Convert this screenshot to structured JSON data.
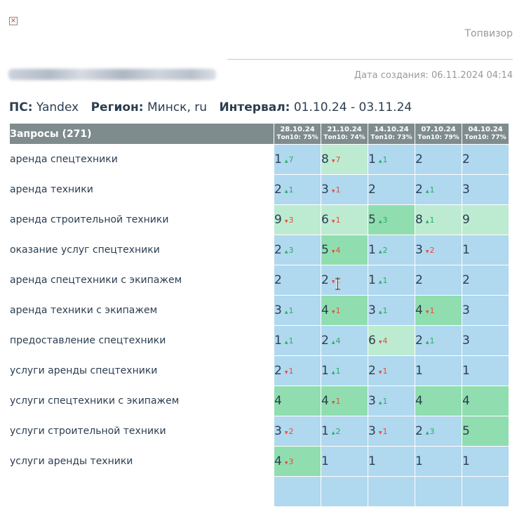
{
  "header": {
    "brand": "Топвизор",
    "created_label": "Дата создания:",
    "created_value": "06.11.2024 04:14"
  },
  "meta": {
    "ps_label": "ПС:",
    "ps_value": "Yandex",
    "region_label": "Регион:",
    "region_value": "Минск, ru",
    "interval_label": "Интервал:",
    "interval_value": "01.10.24 - 03.11.24"
  },
  "table": {
    "queries_header": "Запросы (271)",
    "columns": [
      {
        "date": "28.10.24",
        "top10": "Топ10: 75%"
      },
      {
        "date": "21.10.24",
        "top10": "Топ10: 74%"
      },
      {
        "date": "14.10.24",
        "top10": "Топ10: 73%"
      },
      {
        "date": "07.10.24",
        "top10": "Топ10: 79%"
      },
      {
        "date": "04.10.24",
        "top10": "Топ10: 77%"
      }
    ],
    "rows": [
      {
        "query": "аренда спецтехники",
        "cells": [
          {
            "pos": "1",
            "chg": "7",
            "dir": "up"
          },
          {
            "pos": "8",
            "chg": "7",
            "dir": "down"
          },
          {
            "pos": "1",
            "chg": "1",
            "dir": "up"
          },
          {
            "pos": "2",
            "chg": "",
            "dir": ""
          },
          {
            "pos": "2",
            "chg": "",
            "dir": ""
          }
        ]
      },
      {
        "query": "аренда техники",
        "cells": [
          {
            "pos": "2",
            "chg": "1",
            "dir": "up"
          },
          {
            "pos": "3",
            "chg": "1",
            "dir": "down"
          },
          {
            "pos": "2",
            "chg": "",
            "dir": ""
          },
          {
            "pos": "2",
            "chg": "1",
            "dir": "up"
          },
          {
            "pos": "3",
            "chg": "",
            "dir": ""
          }
        ]
      },
      {
        "query": "аренда строительной техники",
        "cells": [
          {
            "pos": "9",
            "chg": "3",
            "dir": "down"
          },
          {
            "pos": "6",
            "chg": "1",
            "dir": "down"
          },
          {
            "pos": "5",
            "chg": "3",
            "dir": "up"
          },
          {
            "pos": "8",
            "chg": "1",
            "dir": "up"
          },
          {
            "pos": "9",
            "chg": "",
            "dir": ""
          }
        ]
      },
      {
        "query": "оказание услуг спецтехники",
        "cells": [
          {
            "pos": "2",
            "chg": "3",
            "dir": "up"
          },
          {
            "pos": "5",
            "chg": "4",
            "dir": "down"
          },
          {
            "pos": "1",
            "chg": "2",
            "dir": "up"
          },
          {
            "pos": "3",
            "chg": "2",
            "dir": "down"
          },
          {
            "pos": "1",
            "chg": "",
            "dir": ""
          }
        ]
      },
      {
        "query": "аренда спецтехники с экипажем",
        "cells": [
          {
            "pos": "2",
            "chg": "",
            "dir": ""
          },
          {
            "pos": "2",
            "chg": "1",
            "dir": "down"
          },
          {
            "pos": "1",
            "chg": "1",
            "dir": "up"
          },
          {
            "pos": "2",
            "chg": "",
            "dir": ""
          },
          {
            "pos": "2",
            "chg": "",
            "dir": ""
          }
        ]
      },
      {
        "query": "аренда техники с экипажем",
        "cells": [
          {
            "pos": "3",
            "chg": "1",
            "dir": "up"
          },
          {
            "pos": "4",
            "chg": "1",
            "dir": "down"
          },
          {
            "pos": "3",
            "chg": "1",
            "dir": "up"
          },
          {
            "pos": "4",
            "chg": "1",
            "dir": "down"
          },
          {
            "pos": "3",
            "chg": "",
            "dir": ""
          }
        ]
      },
      {
        "query": "предоставление спецтехники",
        "cells": [
          {
            "pos": "1",
            "chg": "1",
            "dir": "up"
          },
          {
            "pos": "2",
            "chg": "4",
            "dir": "up"
          },
          {
            "pos": "6",
            "chg": "4",
            "dir": "down"
          },
          {
            "pos": "2",
            "chg": "1",
            "dir": "up"
          },
          {
            "pos": "3",
            "chg": "",
            "dir": ""
          }
        ]
      },
      {
        "query": "услуги аренды спецтехники",
        "cells": [
          {
            "pos": "2",
            "chg": "1",
            "dir": "down"
          },
          {
            "pos": "1",
            "chg": "1",
            "dir": "up"
          },
          {
            "pos": "2",
            "chg": "1",
            "dir": "down"
          },
          {
            "pos": "1",
            "chg": "",
            "dir": ""
          },
          {
            "pos": "1",
            "chg": "",
            "dir": ""
          }
        ]
      },
      {
        "query": "услуги спецтехники с экипажем",
        "cells": [
          {
            "pos": "4",
            "chg": "",
            "dir": ""
          },
          {
            "pos": "4",
            "chg": "1",
            "dir": "down"
          },
          {
            "pos": "3",
            "chg": "1",
            "dir": "up"
          },
          {
            "pos": "4",
            "chg": "",
            "dir": ""
          },
          {
            "pos": "4",
            "chg": "",
            "dir": ""
          }
        ]
      },
      {
        "query": "услуги строительной техники",
        "cells": [
          {
            "pos": "3",
            "chg": "2",
            "dir": "down"
          },
          {
            "pos": "1",
            "chg": "2",
            "dir": "up"
          },
          {
            "pos": "3",
            "chg": "1",
            "dir": "down"
          },
          {
            "pos": "2",
            "chg": "3",
            "dir": "up"
          },
          {
            "pos": "5",
            "chg": "",
            "dir": ""
          }
        ]
      },
      {
        "query": "услуги аренды техники",
        "cells": [
          {
            "pos": "4",
            "chg": "3",
            "dir": "down"
          },
          {
            "pos": "1",
            "chg": "",
            "dir": ""
          },
          {
            "pos": "1",
            "chg": "",
            "dir": ""
          },
          {
            "pos": "1",
            "chg": "",
            "dir": ""
          },
          {
            "pos": "1",
            "chg": "",
            "dir": ""
          }
        ]
      },
      {
        "query": "",
        "cells": [
          {
            "pos": "",
            "chg": "",
            "dir": ""
          },
          {
            "pos": "",
            "chg": "",
            "dir": ""
          },
          {
            "pos": "",
            "chg": "",
            "dir": ""
          },
          {
            "pos": "",
            "chg": "",
            "dir": ""
          },
          {
            "pos": "",
            "chg": "",
            "dir": ""
          }
        ]
      }
    ]
  },
  "colors": {
    "header_bg": "#7f8c8d",
    "top1_3": "#b0d8ee",
    "top4": "#90deb0",
    "top5": "#90deb0",
    "top6_10": "#bcebd2",
    "change_up": "#27ae60",
    "change_down": "#e74c3c"
  },
  "icons": {
    "broken_image": "broken-image-icon",
    "change_arrow": "triangle-arrow-icon",
    "cursor": "text-cursor-icon"
  }
}
